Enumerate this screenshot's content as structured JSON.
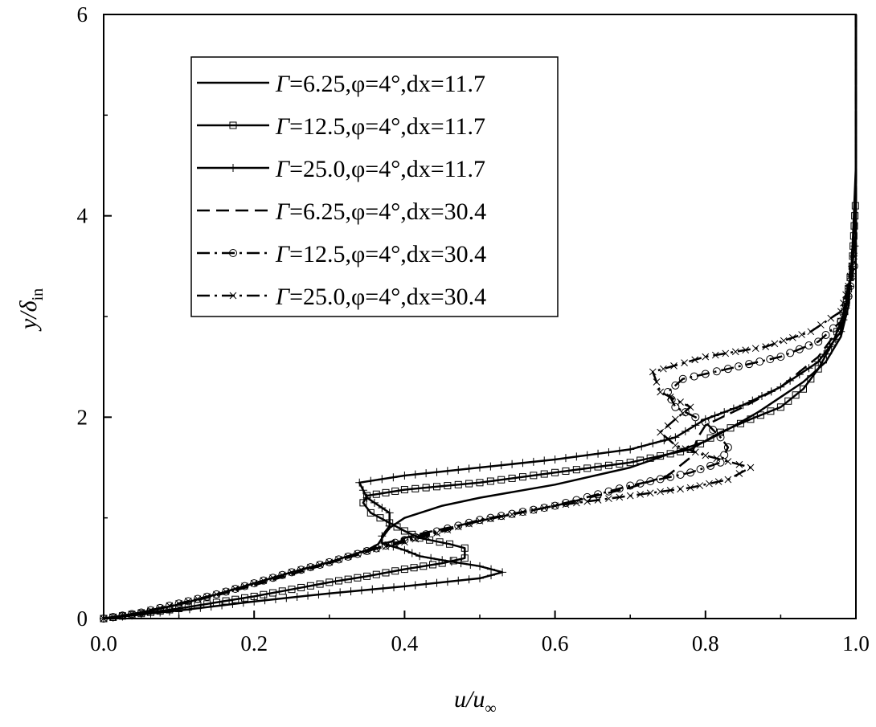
{
  "chart_data": {
    "type": "line",
    "xlabel": {
      "main": "u/u",
      "sub": "∞"
    },
    "ylabel": {
      "main": "y/δ",
      "sub": "in"
    },
    "xlim": [
      0.0,
      1.0
    ],
    "ylim": [
      0,
      6
    ],
    "xticks": [
      0.0,
      0.2,
      0.4,
      0.6,
      0.8,
      1.0
    ],
    "xtick_labels": [
      "0.0",
      "0.2",
      "0.4",
      "0.6",
      "0.8",
      "1.0"
    ],
    "yticks": [
      0,
      2,
      4,
      6
    ],
    "ytick_labels": [
      "0",
      "2",
      "4",
      "6"
    ],
    "grid": false,
    "legend_position": "top-left",
    "series": [
      {
        "name": "Γ=6.25,φ=4°,dx=11.7",
        "legend_text": "=6.25,φ=4°,dx=11.7",
        "line": "solid",
        "marker": "none",
        "points": [
          [
            0,
            0
          ],
          [
            0.05,
            0.06
          ],
          [
            0.1,
            0.14
          ],
          [
            0.15,
            0.24
          ],
          [
            0.2,
            0.35
          ],
          [
            0.25,
            0.46
          ],
          [
            0.3,
            0.56
          ],
          [
            0.35,
            0.68
          ],
          [
            0.365,
            0.74
          ],
          [
            0.372,
            0.82
          ],
          [
            0.38,
            0.9
          ],
          [
            0.4,
            1.0
          ],
          [
            0.45,
            1.12
          ],
          [
            0.5,
            1.2
          ],
          [
            0.6,
            1.33
          ],
          [
            0.7,
            1.5
          ],
          [
            0.8,
            1.76
          ],
          [
            0.83,
            1.88
          ],
          [
            0.87,
            2.05
          ],
          [
            0.9,
            2.2
          ],
          [
            0.93,
            2.35
          ],
          [
            0.96,
            2.55
          ],
          [
            0.98,
            2.8
          ],
          [
            0.99,
            3.1
          ],
          [
            0.995,
            3.6
          ],
          [
            1.0,
            4.5
          ],
          [
            1.0,
            6.0
          ]
        ]
      },
      {
        "name": "Γ=12.5,φ=4°,dx=11.7",
        "legend_text": "=12.5,φ=4°,dx=11.7",
        "line": "solid",
        "marker": "square",
        "points": [
          [
            0,
            0
          ],
          [
            0.05,
            0.05
          ],
          [
            0.1,
            0.1
          ],
          [
            0.15,
            0.16
          ],
          [
            0.2,
            0.22
          ],
          [
            0.25,
            0.29
          ],
          [
            0.3,
            0.36
          ],
          [
            0.35,
            0.42
          ],
          [
            0.4,
            0.49
          ],
          [
            0.45,
            0.55
          ],
          [
            0.48,
            0.6
          ],
          [
            0.48,
            0.7
          ],
          [
            0.46,
            0.74
          ],
          [
            0.42,
            0.8
          ],
          [
            0.4,
            0.87
          ],
          [
            0.38,
            0.95
          ],
          [
            0.355,
            1.05
          ],
          [
            0.345,
            1.15
          ],
          [
            0.35,
            1.22
          ],
          [
            0.4,
            1.28
          ],
          [
            0.5,
            1.35
          ],
          [
            0.6,
            1.45
          ],
          [
            0.7,
            1.55
          ],
          [
            0.78,
            1.68
          ],
          [
            0.82,
            1.85
          ],
          [
            0.86,
            1.98
          ],
          [
            0.9,
            2.1
          ],
          [
            0.93,
            2.28
          ],
          [
            0.95,
            2.48
          ],
          [
            0.97,
            2.75
          ],
          [
            0.985,
            3.05
          ],
          [
            0.995,
            3.5
          ],
          [
            1.0,
            4.2
          ],
          [
            1.0,
            6.0
          ]
        ]
      },
      {
        "name": "Γ=25.0,φ=4°,dx=11.7",
        "legend_text": "=25.0,φ=4°,dx=11.7",
        "line": "solid",
        "marker": "plus",
        "points": [
          [
            0,
            0
          ],
          [
            0.05,
            0.04
          ],
          [
            0.1,
            0.08
          ],
          [
            0.2,
            0.17
          ],
          [
            0.3,
            0.25
          ],
          [
            0.4,
            0.32
          ],
          [
            0.5,
            0.4
          ],
          [
            0.53,
            0.46
          ],
          [
            0.5,
            0.52
          ],
          [
            0.45,
            0.58
          ],
          [
            0.42,
            0.62
          ],
          [
            0.4,
            0.68
          ],
          [
            0.37,
            0.75
          ],
          [
            0.37,
            0.82
          ],
          [
            0.38,
            0.92
          ],
          [
            0.38,
            1.05
          ],
          [
            0.35,
            1.2
          ],
          [
            0.34,
            1.35
          ],
          [
            0.4,
            1.42
          ],
          [
            0.5,
            1.5
          ],
          [
            0.6,
            1.58
          ],
          [
            0.7,
            1.68
          ],
          [
            0.76,
            1.8
          ],
          [
            0.8,
            1.98
          ],
          [
            0.85,
            2.12
          ],
          [
            0.9,
            2.3
          ],
          [
            0.95,
            2.55
          ],
          [
            0.98,
            2.85
          ],
          [
            0.99,
            3.2
          ],
          [
            1.0,
            3.8
          ],
          [
            1.0,
            6.0
          ]
        ]
      },
      {
        "name": "Γ=6.25,φ=4°,dx=30.4",
        "legend_text": "=6.25,φ=4°,dx=30.4",
        "line": "dash",
        "marker": "none",
        "points": [
          [
            0,
            0
          ],
          [
            0.05,
            0.06
          ],
          [
            0.1,
            0.14
          ],
          [
            0.15,
            0.23
          ],
          [
            0.2,
            0.33
          ],
          [
            0.25,
            0.44
          ],
          [
            0.3,
            0.55
          ],
          [
            0.35,
            0.66
          ],
          [
            0.37,
            0.74
          ],
          [
            0.42,
            0.84
          ],
          [
            0.5,
            0.97
          ],
          [
            0.6,
            1.12
          ],
          [
            0.7,
            1.3
          ],
          [
            0.75,
            1.42
          ],
          [
            0.78,
            1.6
          ],
          [
            0.79,
            1.8
          ],
          [
            0.8,
            1.92
          ],
          [
            0.85,
            2.1
          ],
          [
            0.9,
            2.3
          ],
          [
            0.95,
            2.6
          ],
          [
            0.98,
            2.9
          ],
          [
            0.99,
            3.3
          ],
          [
            1.0,
            4.0
          ],
          [
            1.0,
            6.0
          ]
        ]
      },
      {
        "name": "Γ=12.5,φ=4°,dx=30.4",
        "legend_text": "=12.5,φ=4°,dx=30.4",
        "line": "dashdot",
        "marker": "circle",
        "points": [
          [
            0,
            0
          ],
          [
            0.05,
            0.06
          ],
          [
            0.1,
            0.15
          ],
          [
            0.15,
            0.24
          ],
          [
            0.2,
            0.35
          ],
          [
            0.25,
            0.46
          ],
          [
            0.3,
            0.56
          ],
          [
            0.35,
            0.67
          ],
          [
            0.4,
            0.78
          ],
          [
            0.5,
            0.98
          ],
          [
            0.6,
            1.12
          ],
          [
            0.7,
            1.32
          ],
          [
            0.78,
            1.45
          ],
          [
            0.82,
            1.55
          ],
          [
            0.83,
            1.7
          ],
          [
            0.82,
            1.8
          ],
          [
            0.8,
            1.95
          ],
          [
            0.76,
            2.1
          ],
          [
            0.75,
            2.25
          ],
          [
            0.77,
            2.38
          ],
          [
            0.83,
            2.48
          ],
          [
            0.9,
            2.6
          ],
          [
            0.95,
            2.75
          ],
          [
            0.98,
            2.95
          ],
          [
            0.99,
            3.2
          ],
          [
            1.0,
            3.6
          ],
          [
            1.0,
            6.0
          ]
        ]
      },
      {
        "name": "Γ=25.0,φ=4°,dx=30.4",
        "legend_text": "=25.0,φ=4°,dx=30.4",
        "line": "dashdot",
        "marker": "x",
        "points": [
          [
            0,
            0
          ],
          [
            0.05,
            0.06
          ],
          [
            0.1,
            0.15
          ],
          [
            0.15,
            0.24
          ],
          [
            0.2,
            0.35
          ],
          [
            0.25,
            0.46
          ],
          [
            0.3,
            0.56
          ],
          [
            0.35,
            0.67
          ],
          [
            0.4,
            0.76
          ],
          [
            0.5,
            0.97
          ],
          [
            0.6,
            1.12
          ],
          [
            0.7,
            1.22
          ],
          [
            0.78,
            1.3
          ],
          [
            0.83,
            1.38
          ],
          [
            0.86,
            1.5
          ],
          [
            0.8,
            1.62
          ],
          [
            0.76,
            1.72
          ],
          [
            0.74,
            1.85
          ],
          [
            0.76,
            1.98
          ],
          [
            0.78,
            2.1
          ],
          [
            0.74,
            2.25
          ],
          [
            0.73,
            2.45
          ],
          [
            0.8,
            2.6
          ],
          [
            0.88,
            2.7
          ],
          [
            0.94,
            2.85
          ],
          [
            0.98,
            3.05
          ],
          [
            0.99,
            3.3
          ],
          [
            1.0,
            3.7
          ],
          [
            1.0,
            6.0
          ]
        ]
      }
    ]
  }
}
